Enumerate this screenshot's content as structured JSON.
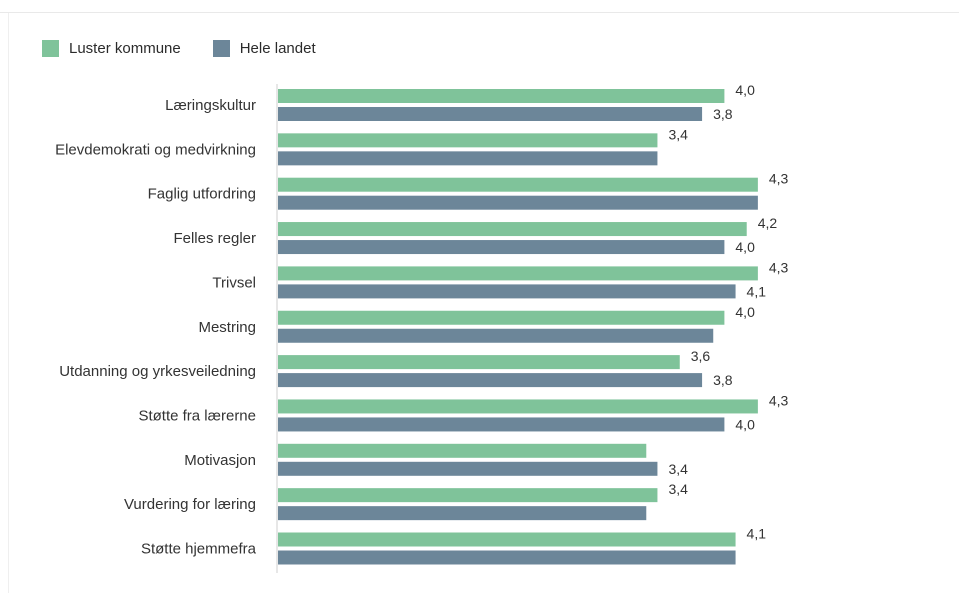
{
  "colors": {
    "luster": "#7fc39a",
    "landet": "#6c8699",
    "axis": "#cfcfcf"
  },
  "legend": {
    "luster": "Luster kommune",
    "landet": "Hele landet"
  },
  "chart_data": {
    "type": "bar",
    "orientation": "horizontal",
    "title": "",
    "xlabel": "",
    "ylabel": "",
    "xlim": [
      0,
      5
    ],
    "grid": false,
    "legend_position": "top-left",
    "categories": [
      "Læringskultur",
      "Elevdemokrati og medvirkning",
      "Faglig utfordring",
      "Felles regler",
      "Trivsel",
      "Mestring",
      "Utdanning og yrkesveiledning",
      "Støtte fra lærerne",
      "Motivasjon",
      "Vurdering for læring",
      "Støtte hjemmefra"
    ],
    "series": [
      {
        "name": "Luster kommune",
        "values": [
          4.0,
          3.4,
          4.3,
          4.2,
          4.3,
          4.0,
          3.6,
          4.3,
          3.3,
          3.4,
          4.1
        ],
        "labels": [
          "4,0",
          "3,4",
          "4,3",
          "4,2",
          "4,3",
          "4,0",
          "3,6",
          "4,3",
          "",
          "3,4",
          "4,1"
        ]
      },
      {
        "name": "Hele landet",
        "values": [
          3.8,
          3.4,
          4.3,
          4.0,
          4.1,
          3.9,
          3.8,
          4.0,
          3.4,
          3.3,
          4.1
        ],
        "labels": [
          "3,8",
          "",
          "",
          "4,0",
          "4,1",
          "",
          "3,8",
          "4,0",
          "3,4",
          "",
          ""
        ]
      }
    ]
  }
}
